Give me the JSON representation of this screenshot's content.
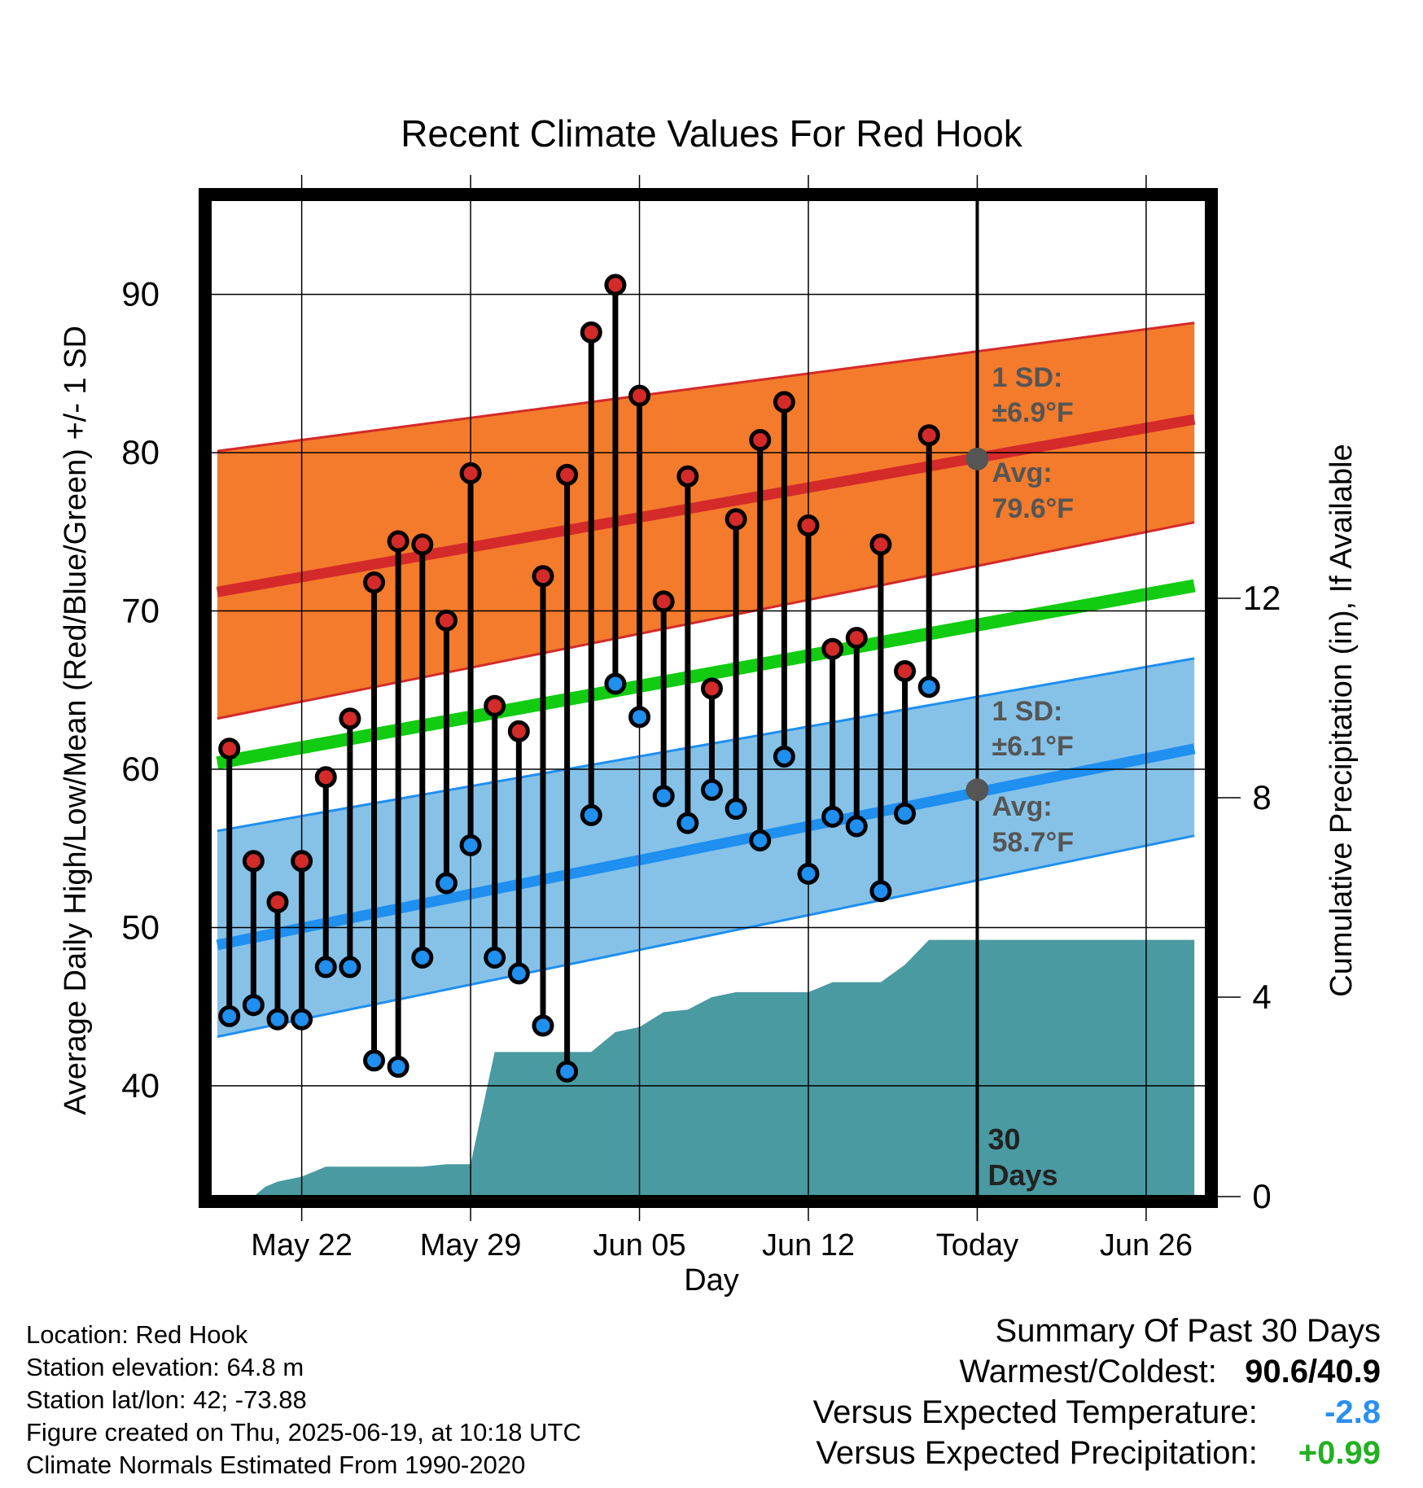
{
  "chart_data": {
    "type": "line",
    "title": "Recent Climate Values For Red Hook",
    "xlabel": "Day",
    "ylabel": "Average Daily High/Low/Mean (Red/Blue/Green) +/- 1 SD",
    "y2label": "Cumulative Precipitation (in), If Available",
    "ylim": [
      33,
      96
    ],
    "y2lim": [
      0,
      20
    ],
    "x_tick_labels": [
      "May 22",
      "May 29",
      "Jun 05",
      "Jun 12",
      "Today",
      "Jun 26"
    ],
    "x_tick_days": [
      22,
      29,
      36,
      43,
      50,
      57
    ],
    "y_ticks": [
      40,
      50,
      60,
      70,
      80,
      90
    ],
    "y2_ticks": [
      0,
      4,
      8,
      12
    ],
    "xlim": [
      18.2,
      59.5
    ],
    "today_day": 50,
    "today_label_line1": "30",
    "today_label_line2": "Days",
    "normals": {
      "high_avg": [
        71.2,
        82.1
      ],
      "high_sd_upper": [
        80.1,
        88.2
      ],
      "high_sd_lower": [
        63.2,
        75.6
      ],
      "mean": [
        60.4,
        71.6
      ],
      "low_avg": [
        48.9,
        61.3
      ],
      "low_sd_upper": [
        56.1,
        67.0
      ],
      "low_sd_lower": [
        43.1,
        55.8
      ],
      "normal_days": [
        18.5,
        59.0
      ]
    },
    "high_annotation": {
      "sd_label": "1 SD:",
      "sd_value": "±6.9°F",
      "avg_label": "Avg:",
      "avg_value": "79.6°F",
      "avg_at_today": 79.6
    },
    "low_annotation": {
      "sd_label": "1 SD:",
      "sd_value": "±6.1°F",
      "avg_label": "Avg:",
      "avg_value": "58.7°F",
      "avg_at_today": 58.7
    },
    "series": [
      {
        "name": "High",
        "x": [
          19,
          20,
          21,
          22,
          23,
          24,
          25,
          26,
          27,
          28,
          29,
          30,
          31,
          32,
          33,
          34,
          35,
          36,
          37,
          38,
          39,
          40,
          41,
          42,
          43,
          44,
          45,
          46,
          47,
          48,
          49
        ],
        "values": [
          61.3,
          54.2,
          51.6,
          54.2,
          59.5,
          63.2,
          71.8,
          74.4,
          74.2,
          69.4,
          78.7,
          64.0,
          62.4,
          72.2,
          78.6,
          87.6,
          90.6,
          83.6,
          70.6,
          78.5,
          65.1,
          75.8,
          80.8,
          83.2,
          75.4,
          67.6,
          68.3,
          74.2,
          66.2,
          81.1,
          null
        ]
      },
      {
        "name": "Low",
        "x": [
          19,
          20,
          21,
          22,
          23,
          24,
          25,
          26,
          27,
          28,
          29,
          30,
          31,
          32,
          33,
          34,
          35,
          36,
          37,
          38,
          39,
          40,
          41,
          42,
          43,
          44,
          45,
          46,
          47,
          48,
          49
        ],
        "values": [
          44.4,
          45.1,
          44.2,
          44.2,
          47.5,
          47.5,
          41.6,
          41.2,
          48.1,
          52.8,
          55.2,
          48.1,
          47.1,
          43.8,
          40.9,
          57.1,
          65.4,
          63.3,
          58.3,
          56.6,
          58.7,
          57.5,
          55.5,
          60.8,
          53.4,
          57.0,
          56.4,
          52.3,
          57.2,
          65.2,
          null
        ]
      },
      {
        "name": "Precipitation",
        "x": [
          18.5,
          20,
          20.5,
          21,
          22,
          23,
          24,
          25,
          26,
          27,
          28,
          29,
          30,
          31,
          32,
          33,
          34,
          35,
          36,
          37,
          38,
          39,
          40,
          41,
          42,
          43,
          44,
          45,
          46,
          47,
          48,
          49,
          50,
          59
        ],
        "values": [
          0,
          0,
          0.2,
          0.3,
          0.4,
          0.6,
          0.6,
          0.6,
          0.6,
          0.6,
          0.65,
          0.65,
          2.9,
          2.9,
          2.9,
          2.9,
          2.9,
          3.3,
          3.4,
          3.7,
          3.75,
          4.0,
          4.1,
          4.1,
          4.1,
          4.1,
          4.3,
          4.3,
          4.3,
          4.65,
          5.15,
          5.15,
          5.15,
          5.15
        ]
      }
    ]
  },
  "info": {
    "location": "Location: Red Hook",
    "elevation": "Station elevation: 64.8 m",
    "latlon": "Station lat/lon: 42; -73.88",
    "created": "Figure created on Thu, 2025-06-19, at 10:18 UTC",
    "normals": "Climate Normals Estimated From 1990-2020"
  },
  "summary": {
    "title": "Summary Of Past 30 Days",
    "warmest_coldest_label": "Warmest/Coldest:",
    "warmest_coldest_value": "90.6/40.9",
    "temp_label": "Versus Expected Temperature:",
    "temp_value": "-2.8",
    "precip_label": "Versus Expected Precipitation:",
    "precip_value": "+0.99"
  },
  "colors": {
    "high_band": "#f47b2b",
    "high_line": "#d42a2a",
    "mean_line": "#11cc11",
    "low_band": "#86c2e8",
    "low_line": "#1f8ff0",
    "precip": "#4a9aa2",
    "annotation": "#555555",
    "temp_value": "#2a8ff0",
    "precip_value": "#22b022"
  }
}
